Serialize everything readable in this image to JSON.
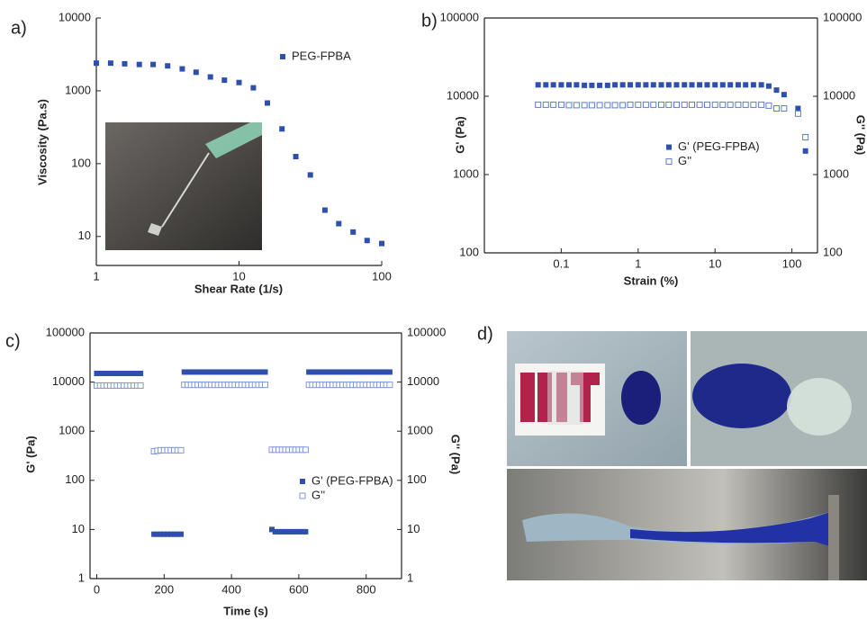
{
  "panel_labels": [
    "a)",
    "b)",
    "c)",
    "d)"
  ],
  "chart_data": [
    {
      "type": "scatter",
      "xlabel": "Shear Rate (1/s)",
      "ylabel": "Viscosity (Pa.s)",
      "xscale": "log",
      "yscale": "log",
      "xlim": [
        1,
        100
      ],
      "ylim": [
        4,
        10000
      ],
      "xticks": [
        1,
        10,
        100
      ],
      "yticks": [
        10,
        100,
        1000,
        10000
      ],
      "legend": "upper right",
      "x": [
        1,
        1.26,
        1.58,
        2,
        2.5,
        3.16,
        4,
        5,
        6.3,
        7.9,
        10,
        12.6,
        15.8,
        20,
        25,
        31.6,
        40,
        50,
        63,
        79,
        100
      ],
      "series": [
        {
          "name": "PEG-FPBA",
          "color": "#2f4fae",
          "marker": "filled-square",
          "values": [
            2400,
            2400,
            2350,
            2300,
            2300,
            2200,
            2000,
            1800,
            1550,
            1400,
            1300,
            1100,
            680,
            300,
            125,
            70,
            23,
            15,
            11.5,
            8.8,
            8
          ]
        }
      ]
    },
    {
      "type": "scatter",
      "xlabel": "Strain (%)",
      "ylabel": "G' (Pa)",
      "y2label": "G'' (Pa)",
      "xscale": "log",
      "yscale": "log",
      "xlim": [
        0.01,
        215
      ],
      "ylim": [
        100,
        100000
      ],
      "y2lim": [
        100,
        100000
      ],
      "xticks": [
        0.1,
        1,
        10,
        100
      ],
      "yticks": [
        100,
        1000,
        10000,
        100000
      ],
      "y2ticks": [
        100,
        1000,
        10000,
        100000
      ],
      "legend": "center right",
      "x": [
        0.05,
        0.063,
        0.079,
        0.1,
        0.126,
        0.158,
        0.2,
        0.25,
        0.316,
        0.4,
        0.5,
        0.63,
        0.79,
        1,
        1.26,
        1.58,
        2,
        2.5,
        3.16,
        4,
        5,
        6.3,
        7.9,
        10,
        12.6,
        15.8,
        20,
        25,
        31.6,
        40,
        50,
        63,
        79,
        120,
        150
      ],
      "series": [
        {
          "name": "G' (PEG-FPBA)",
          "color": "#2f4fae",
          "marker": "filled-square",
          "values": [
            14000,
            14000,
            14000,
            14000,
            14000,
            14000,
            13800,
            13800,
            13800,
            13800,
            14000,
            14000,
            14000,
            14000,
            14000,
            14000,
            14000,
            14000,
            14000,
            14000,
            14000,
            14000,
            14000,
            14000,
            14000,
            14000,
            14000,
            14000,
            14000,
            14000,
            13500,
            12000,
            10500,
            7000,
            2000
          ]
        },
        {
          "name": "G''",
          "color": "#5c7cd0",
          "marker": "open-square",
          "axis": "y2",
          "values": [
            7800,
            7800,
            7800,
            7800,
            7700,
            7700,
            7700,
            7700,
            7700,
            7700,
            7700,
            7700,
            7800,
            7800,
            7800,
            7800,
            7800,
            7800,
            7800,
            7800,
            7800,
            7800,
            7800,
            7800,
            7800,
            7800,
            7800,
            7800,
            7800,
            7800,
            7600,
            7000,
            7000,
            6000,
            3000
          ]
        }
      ]
    },
    {
      "type": "scatter",
      "xlabel": "Time (s)",
      "ylabel": "G' (Pa)",
      "y2label": "G'' (Pa)",
      "xscale": "linear",
      "yscale": "log",
      "xlim": [
        -20,
        905
      ],
      "ylim": [
        1,
        100000
      ],
      "y2lim": [
        1,
        100000
      ],
      "xticks": [
        0,
        200,
        400,
        600,
        800
      ],
      "yticks": [
        1,
        10,
        100,
        1000,
        10000,
        100000
      ],
      "y2ticks": [
        1,
        10,
        100,
        1000,
        10000,
        100000
      ],
      "legend": "lower right",
      "x": [
        0,
        10,
        20,
        30,
        40,
        50,
        60,
        70,
        80,
        90,
        100,
        110,
        120,
        130,
        170,
        180,
        190,
        200,
        210,
        220,
        230,
        240,
        250,
        260,
        270,
        280,
        290,
        300,
        310,
        320,
        330,
        340,
        350,
        360,
        370,
        380,
        390,
        400,
        410,
        420,
        430,
        440,
        450,
        460,
        470,
        480,
        490,
        500,
        520,
        530,
        540,
        550,
        560,
        570,
        580,
        590,
        600,
        610,
        620,
        630,
        640,
        650,
        660,
        670,
        680,
        690,
        700,
        710,
        720,
        730,
        740,
        750,
        760,
        770,
        780,
        790,
        800,
        810,
        820,
        830,
        840,
        850,
        860,
        870
      ],
      "series": [
        {
          "name": "G' (PEG-FPBA)",
          "color": "#2f4fae",
          "marker": "filled-square",
          "values": [
            15000,
            15000,
            15000,
            15000,
            15000,
            15000,
            15000,
            15000,
            15000,
            15000,
            15000,
            15000,
            15000,
            15000,
            8,
            8,
            8,
            8,
            8,
            8,
            8,
            8,
            8,
            16000,
            16000,
            16000,
            16000,
            16000,
            16000,
            16000,
            16000,
            16000,
            16000,
            16000,
            16000,
            16000,
            16000,
            16000,
            16000,
            16000,
            16000,
            16000,
            16000,
            16000,
            16000,
            16000,
            16000,
            16000,
            10,
            9,
            9,
            9,
            9,
            9,
            9,
            9,
            9,
            9,
            9,
            16000,
            16000,
            16000,
            16000,
            16000,
            16000,
            16000,
            16000,
            16000,
            16000,
            16000,
            16000,
            16000,
            16000,
            16000,
            16000,
            16000,
            16000,
            16000,
            16000,
            16000,
            16000,
            16000,
            16000,
            16000
          ]
        },
        {
          "name": "G''",
          "color": "#7f98db",
          "marker": "open-square",
          "axis": "y2",
          "values": [
            8500,
            8500,
            8500,
            8500,
            8500,
            8500,
            8500,
            8500,
            8500,
            8500,
            8500,
            8500,
            8500,
            8500,
            390,
            400,
            410,
            410,
            410,
            410,
            410,
            410,
            410,
            8800,
            8800,
            8800,
            8800,
            8800,
            8800,
            8800,
            8800,
            8800,
            8800,
            8800,
            8800,
            8800,
            8800,
            8800,
            8800,
            8800,
            8800,
            8800,
            8800,
            8800,
            8800,
            8800,
            8800,
            8800,
            420,
            420,
            420,
            420,
            420,
            420,
            420,
            420,
            420,
            420,
            420,
            8800,
            8800,
            8800,
            8800,
            8800,
            8800,
            8800,
            8800,
            8800,
            8800,
            8800,
            8800,
            8800,
            8800,
            8800,
            8800,
            8800,
            8800,
            8800,
            8800,
            8800,
            8800,
            8800,
            8800,
            8800
          ]
        }
      ]
    }
  ]
}
